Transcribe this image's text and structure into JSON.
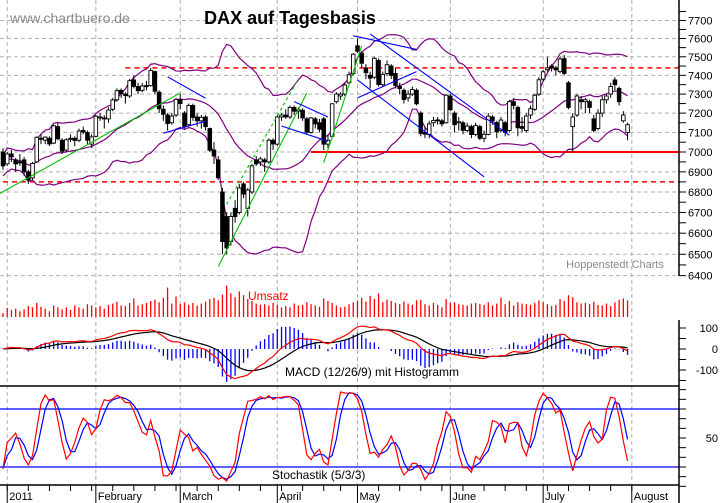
{
  "watermark": "www.chartbuero.de",
  "title": "DAX auf Tagesbasis",
  "credit": "Hoppenstedt Charts",
  "colors": {
    "bollinger": "#800080",
    "trend_green": "#00c000",
    "trend_blue": "#0000ff",
    "support_red": "#ff0000",
    "volume": "#ff0000",
    "macd": "#ff0000",
    "signal": "#000000",
    "histogram": "#0000ff",
    "stoch_k": "#ff0000",
    "stoch_d": "#0000ff"
  },
  "chart_data": [
    {
      "type": "candlestick",
      "title": "DAX auf Tagesbasis",
      "scale": "log",
      "ylim": [
        6350,
        7750
      ],
      "yticks": [
        6400,
        6500,
        6600,
        6700,
        6800,
        6900,
        7000,
        7100,
        7200,
        7300,
        7400,
        7500,
        7600,
        7700
      ],
      "grid": true,
      "x_start": "2010-12-30",
      "holidays": [
        "2010-12-31",
        "2011-04-22",
        "2011-04-25"
      ],
      "xticks": [
        {
          "label": "2011",
          "date": "2011-01-03"
        },
        {
          "label": "February",
          "date": "2011-02-01"
        },
        {
          "label": "March",
          "date": "2011-03-01"
        },
        {
          "label": "April",
          "date": "2011-04-01"
        },
        {
          "label": "May",
          "date": "2011-05-02"
        },
        {
          "label": "June",
          "date": "2011-06-01"
        },
        {
          "label": "July",
          "date": "2011-07-01"
        },
        {
          "label": "August",
          "date": "2011-08-01"
        }
      ],
      "ohlc": [
        [
          7000,
          7020,
          6910,
          6930
        ],
        [
          6940,
          7000,
          6930,
          6990
        ],
        [
          6990,
          7010,
          6950,
          6975
        ],
        [
          6960,
          6970,
          6900,
          6940
        ],
        [
          6950,
          6990,
          6930,
          6947
        ],
        [
          6960,
          6975,
          6880,
          6900
        ],
        [
          6900,
          6910,
          6840,
          6860
        ],
        [
          6870,
          6950,
          6860,
          6942
        ],
        [
          6950,
          7080,
          6945,
          7075
        ],
        [
          7070,
          7090,
          7040,
          7068
        ],
        [
          7060,
          7080,
          7040,
          7076
        ],
        [
          7070,
          7080,
          7030,
          7041
        ],
        [
          7045,
          7140,
          7040,
          7134
        ],
        [
          7130,
          7150,
          7060,
          7067
        ],
        [
          7060,
          7070,
          6990,
          7004
        ],
        [
          7010,
          7070,
          7000,
          7062
        ],
        [
          7070,
          7090,
          7050,
          7067
        ],
        [
          7070,
          7080,
          7030,
          7059
        ],
        [
          7060,
          7120,
          7050,
          7107
        ],
        [
          7110,
          7130,
          7090,
          7102
        ],
        [
          7100,
          7110,
          7040,
          7060
        ],
        [
          7040,
          7090,
          7020,
          7077
        ],
        [
          7080,
          7190,
          7075,
          7184
        ],
        [
          7180,
          7200,
          7160,
          7180
        ],
        [
          7175,
          7190,
          7120,
          7170
        ],
        [
          7170,
          7230,
          7150,
          7216
        ],
        [
          7220,
          7280,
          7210,
          7269
        ],
        [
          7270,
          7330,
          7260,
          7318
        ],
        [
          7320,
          7330,
          7280,
          7302
        ],
        [
          7300,
          7310,
          7250,
          7292
        ],
        [
          7290,
          7380,
          7280,
          7371
        ],
        [
          7375,
          7400,
          7330,
          7341
        ],
        [
          7340,
          7360,
          7300,
          7318
        ],
        [
          7320,
          7360,
          7310,
          7343
        ],
        [
          7345,
          7370,
          7320,
          7343
        ],
        [
          7345,
          7440,
          7340,
          7426
        ],
        [
          7420,
          7425,
          7300,
          7315
        ],
        [
          7310,
          7320,
          7200,
          7223
        ],
        [
          7220,
          7240,
          7160,
          7194
        ],
        [
          7190,
          7200,
          7110,
          7146
        ],
        [
          7150,
          7200,
          7140,
          7185
        ],
        [
          7190,
          7280,
          7180,
          7272
        ],
        [
          7270,
          7300,
          7220,
          7250
        ],
        [
          7200,
          7210,
          7120,
          7131
        ],
        [
          7140,
          7250,
          7130,
          7240
        ],
        [
          7240,
          7250,
          7160,
          7178
        ],
        [
          7180,
          7200,
          7130,
          7160
        ],
        [
          7160,
          7190,
          7120,
          7178
        ],
        [
          7180,
          7190,
          7110,
          7130
        ],
        [
          7120,
          7125,
          7000,
          7009
        ],
        [
          7010,
          7050,
          6940,
          6980
        ],
        [
          6960,
          6980,
          6860,
          6870
        ],
        [
          6800,
          6820,
          6500,
          6560
        ],
        [
          6680,
          6700,
          6500,
          6530
        ],
        [
          6560,
          6700,
          6540,
          6680
        ],
        [
          6720,
          6760,
          6650,
          6680
        ],
        [
          6700,
          6840,
          6690,
          6820
        ],
        [
          6840,
          6850,
          6770,
          6790
        ],
        [
          6720,
          6820,
          6680,
          6810
        ],
        [
          6800,
          6940,
          6790,
          6930
        ],
        [
          6960,
          6980,
          6930,
          6940
        ],
        [
          6950,
          6975,
          6930,
          6965
        ],
        [
          6960,
          6970,
          6900,
          6950
        ],
        [
          6950,
          7070,
          6940,
          7060
        ],
        [
          7060,
          7070,
          7010,
          7041
        ],
        [
          7040,
          7190,
          7030,
          7180
        ],
        [
          7180,
          7200,
          7160,
          7190
        ],
        [
          7190,
          7220,
          7170,
          7180
        ],
        [
          7180,
          7240,
          7170,
          7230
        ],
        [
          7230,
          7240,
          7190,
          7210
        ],
        [
          7210,
          7230,
          7170,
          7217
        ],
        [
          7215,
          7225,
          7160,
          7175
        ],
        [
          7170,
          7180,
          7090,
          7101
        ],
        [
          7100,
          7180,
          7095,
          7175
        ],
        [
          7170,
          7180,
          7120,
          7144
        ],
        [
          7150,
          7170,
          7100,
          7116
        ],
        [
          7170,
          7180,
          7010,
          7040
        ],
        [
          7040,
          7090,
          7020,
          7060
        ],
        [
          7080,
          7250,
          7070,
          7249
        ],
        [
          7260,
          7310,
          7250,
          7300
        ],
        [
          7290,
          7310,
          7270,
          7300
        ],
        [
          7300,
          7360,
          7290,
          7348
        ],
        [
          7360,
          7420,
          7350,
          7403
        ],
        [
          7410,
          7520,
          7400,
          7514
        ],
        [
          7560,
          7600,
          7520,
          7530
        ],
        [
          7520,
          7530,
          7440,
          7465
        ],
        [
          7440,
          7460,
          7380,
          7414
        ],
        [
          7400,
          7420,
          7330,
          7385
        ],
        [
          7390,
          7500,
          7380,
          7492
        ],
        [
          7480,
          7490,
          7340,
          7351
        ],
        [
          7350,
          7420,
          7340,
          7405
        ],
        [
          7410,
          7480,
          7400,
          7457
        ],
        [
          7450,
          7460,
          7380,
          7400
        ],
        [
          7410,
          7440,
          7330,
          7346
        ],
        [
          7340,
          7360,
          7300,
          7329
        ],
        [
          7320,
          7330,
          7250,
          7271
        ],
        [
          7280,
          7320,
          7260,
          7300
        ],
        [
          7300,
          7340,
          7290,
          7324
        ],
        [
          7320,
          7330,
          7240,
          7249
        ],
        [
          7200,
          7210,
          7080,
          7095
        ],
        [
          7100,
          7130,
          7070,
          7091
        ],
        [
          7090,
          7160,
          7070,
          7144
        ],
        [
          7150,
          7180,
          7130,
          7161
        ],
        [
          7165,
          7180,
          7140,
          7164
        ],
        [
          7160,
          7170,
          7130,
          7144
        ],
        [
          7150,
          7300,
          7145,
          7294
        ],
        [
          7290,
          7300,
          7210,
          7218
        ],
        [
          7200,
          7210,
          7100,
          7140
        ],
        [
          7150,
          7180,
          7110,
          7155
        ],
        [
          7150,
          7160,
          7090,
          7111
        ],
        [
          7110,
          7150,
          7100,
          7133
        ],
        [
          7130,
          7140,
          7070,
          7089
        ],
        [
          7090,
          7150,
          7080,
          7135
        ],
        [
          7130,
          7140,
          7060,
          7070
        ],
        [
          7070,
          7110,
          7050,
          7090
        ],
        [
          7090,
          7200,
          7085,
          7184
        ],
        [
          7180,
          7190,
          7140,
          7162
        ],
        [
          7150,
          7160,
          7070,
          7103
        ],
        [
          7110,
          7180,
          7100,
          7164
        ],
        [
          7150,
          7160,
          7080,
          7100
        ],
        [
          7110,
          7270,
          7100,
          7260
        ],
        [
          7260,
          7280,
          7220,
          7240
        ],
        [
          7230,
          7240,
          7080,
          7124
        ],
        [
          7130,
          7180,
          7100,
          7121
        ],
        [
          7110,
          7200,
          7100,
          7185
        ],
        [
          7190,
          7240,
          7170,
          7223
        ],
        [
          7220,
          7300,
          7210,
          7294
        ],
        [
          7300,
          7390,
          7290,
          7376
        ],
        [
          7380,
          7430,
          7370,
          7419
        ],
        [
          7430,
          7500,
          7420,
          7440
        ],
        [
          7450,
          7460,
          7420,
          7440
        ],
        [
          7440,
          7450,
          7400,
          7430
        ],
        [
          7420,
          7500,
          7410,
          7488
        ],
        [
          7490,
          7510,
          7400,
          7410
        ],
        [
          7360,
          7370,
          7220,
          7230
        ],
        [
          7130,
          7200,
          7000,
          7180
        ],
        [
          7190,
          7300,
          7180,
          7290
        ],
        [
          7270,
          7290,
          7220,
          7260
        ],
        [
          7260,
          7280,
          7200,
          7270
        ],
        [
          7260,
          7270,
          7200,
          7230
        ],
        [
          7170,
          7190,
          7100,
          7110
        ],
        [
          7120,
          7220,
          7110,
          7200
        ],
        [
          7200,
          7290,
          7180,
          7270
        ],
        [
          7270,
          7300,
          7250,
          7290
        ],
        [
          7300,
          7360,
          7280,
          7340
        ],
        [
          7375,
          7390,
          7320,
          7350
        ],
        [
          7330,
          7340,
          7240,
          7260
        ],
        [
          7160,
          7210,
          7150,
          7190
        ],
        [
          7100,
          7150,
          7060,
          7140
        ]
      ],
      "bollinger": {
        "period": 20,
        "stddev": 2
      },
      "horizontal_lines": [
        {
          "price": 7440,
          "from": "2011-02-10",
          "style": "dashed"
        },
        {
          "price": 7000,
          "from": "2011-04-13",
          "style": "solid"
        },
        {
          "price": 6850,
          "from": "2010-12-30",
          "style": "dashed"
        }
      ],
      "trendlines": [
        {
          "color": "green",
          "style": "solid",
          "p1": [
            "2010-12-29",
            6790
          ],
          "p2": [
            "2011-03-01",
            7306
          ]
        },
        {
          "color": "green",
          "style": "solid",
          "p1": [
            "2011-03-14",
            6442
          ],
          "p2": [
            "2011-04-12",
            7306
          ]
        },
        {
          "color": "green",
          "style": "dashed",
          "p1": [
            "2011-03-16",
            6740
          ],
          "p2": [
            "2011-04-08",
            7380
          ]
        },
        {
          "color": "green",
          "style": "solid",
          "p1": [
            "2011-04-18",
            6945
          ],
          "p2": [
            "2011-05-03",
            7560
          ]
        },
        {
          "color": "blue",
          "style": "solid",
          "p1": [
            "2011-02-24",
            7392
          ],
          "p2": [
            "2011-03-09",
            7278
          ]
        },
        {
          "color": "blue",
          "style": "solid",
          "p1": [
            "2011-02-23",
            7096
          ],
          "p2": [
            "2011-03-09",
            7158
          ]
        },
        {
          "color": "blue",
          "style": "solid",
          "p1": [
            "2011-04-07",
            7260
          ],
          "p2": [
            "2011-04-19",
            7180
          ]
        },
        {
          "color": "blue",
          "style": "solid",
          "p1": [
            "2011-04-04",
            7133
          ],
          "p2": [
            "2011-04-19",
            7055
          ]
        },
        {
          "color": "blue",
          "style": "solid",
          "p1": [
            "2011-04-29",
            7615
          ],
          "p2": [
            "2011-05-20",
            7540
          ]
        },
        {
          "color": "blue",
          "style": "solid",
          "p1": [
            "2011-05-05",
            7625
          ],
          "p2": [
            "2011-06-21",
            7085
          ]
        },
        {
          "color": "blue",
          "style": "solid",
          "p1": [
            "2011-05-02",
            7375
          ],
          "p2": [
            "2011-06-13",
            6875
          ]
        },
        {
          "color": "blue",
          "style": "solid",
          "p1": [
            "2011-05-02",
            7280
          ],
          "p2": [
            "2011-05-20",
            7420
          ]
        }
      ]
    },
    {
      "type": "bar",
      "label": "Umsatz",
      "values": [
        12,
        28,
        22,
        26,
        18,
        24,
        34,
        30,
        44,
        32,
        26,
        18,
        36,
        30,
        24,
        30,
        22,
        36,
        30,
        26,
        40,
        36,
        30,
        34,
        26,
        38,
        42,
        48,
        36,
        34,
        44,
        58,
        36,
        40,
        44,
        50,
        54,
        46,
        60,
        92,
        42,
        64,
        40,
        46,
        38,
        44,
        36,
        42,
        48,
        56,
        60,
        52,
        70,
        98,
        74,
        62,
        80,
        68,
        56,
        50,
        42,
        38,
        40,
        36,
        44,
        38,
        30,
        34,
        30,
        42,
        36,
        38,
        46,
        40,
        36,
        32,
        58,
        50,
        44,
        36,
        30,
        32,
        40,
        46,
        52,
        60,
        48,
        66,
        56,
        74,
        46,
        54,
        50,
        44,
        40,
        48,
        42,
        38,
        52,
        54,
        40,
        36,
        44,
        38,
        30,
        56,
        44,
        46,
        40,
        38,
        36,
        42,
        44,
        40,
        38,
        46,
        36,
        42,
        60,
        40,
        50,
        36,
        46,
        42,
        40,
        38,
        44,
        52,
        46,
        40,
        34,
        38,
        56,
        50,
        68,
        62,
        46,
        42,
        44,
        40,
        48,
        38,
        36,
        42,
        34,
        46,
        54,
        58,
        52
      ]
    },
    {
      "type": "line",
      "label": "MACD (12/26/9) mit Histogramm",
      "params": {
        "fast": 12,
        "slow": 26,
        "signal": 9
      },
      "ylim": [
        -170,
        120
      ],
      "yticks": [
        {
          "v": 100,
          "label": "100"
        },
        {
          "v": 0,
          "label": "0"
        },
        {
          "v": -100,
          "label": "-100"
        }
      ]
    },
    {
      "type": "line",
      "label": "Stochastik (5/3/3)",
      "params": {
        "k": 5,
        "slow": 3,
        "d": 3
      },
      "levels": [
        20,
        80
      ],
      "yticks": [
        {
          "v": 50,
          "label": "50"
        }
      ]
    }
  ]
}
